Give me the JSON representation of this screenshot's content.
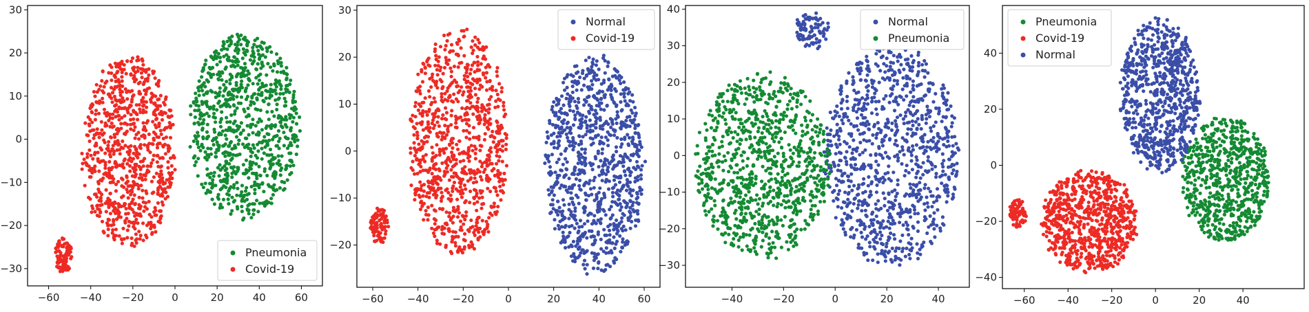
{
  "colors": {
    "Normal": "#3a4ea8",
    "Pneumonia": "#148a33",
    "Covid-19": "#ee2a24"
  },
  "chart_data": [
    {
      "type": "scatter",
      "title": "",
      "xlabel": "",
      "ylabel": "",
      "xlim": [
        -70,
        70
      ],
      "ylim": [
        -34,
        31
      ],
      "xticks": [
        -60,
        -40,
        -20,
        0,
        20,
        40,
        60
      ],
      "yticks": [
        -30,
        -20,
        -10,
        0,
        10,
        20,
        30
      ],
      "grid": false,
      "legend_position": "bottom-right",
      "legend": [
        "Pneumonia",
        "Covid-19"
      ],
      "series": [
        {
          "name": "Pneumonia",
          "clusters": [
            {
              "cx": 33,
              "cy": 3,
              "rx": 26,
              "ry": 21,
              "count": 900
            }
          ]
        },
        {
          "name": "Covid-19",
          "clusters": [
            {
              "cx": -22,
              "cy": -3,
              "rx": 22,
              "ry": 22,
              "count": 850
            },
            {
              "cx": -53,
              "cy": -27,
              "rx": 4,
              "ry": 4,
              "count": 90
            }
          ]
        }
      ]
    },
    {
      "type": "scatter",
      "title": "",
      "xlabel": "",
      "ylabel": "",
      "xlim": [
        -67,
        67
      ],
      "ylim": [
        -29,
        31
      ],
      "xticks": [
        -60,
        -40,
        -20,
        0,
        20,
        40,
        60
      ],
      "yticks": [
        -20,
        -10,
        0,
        10,
        20,
        30
      ],
      "grid": false,
      "legend_position": "top-right",
      "legend": [
        "Normal",
        "Covid-19"
      ],
      "series": [
        {
          "name": "Normal",
          "clusters": [
            {
              "cx": 38,
              "cy": -3,
              "rx": 22,
              "ry": 23,
              "count": 950
            }
          ]
        },
        {
          "name": "Covid-19",
          "clusters": [
            {
              "cx": -22,
              "cy": 2,
              "rx": 22,
              "ry": 24,
              "count": 900
            },
            {
              "cx": -57,
              "cy": -16,
              "rx": 4,
              "ry": 4,
              "count": 80
            }
          ]
        }
      ]
    },
    {
      "type": "scatter",
      "title": "",
      "xlabel": "",
      "ylabel": "",
      "xlim": [
        -58,
        52
      ],
      "ylim": [
        -36,
        41
      ],
      "xticks": [
        -40,
        -20,
        0,
        20,
        40
      ],
      "yticks": [
        -30,
        -20,
        -10,
        0,
        10,
        20,
        30,
        40
      ],
      "grid": false,
      "legend_position": "top-right",
      "legend": [
        "Normal",
        "Pneumonia"
      ],
      "series": [
        {
          "name": "Normal",
          "clusters": [
            {
              "cx": 22,
              "cy": 0,
              "rx": 26,
              "ry": 30,
              "count": 1000
            },
            {
              "cx": -9,
              "cy": 34,
              "rx": 7,
              "ry": 5,
              "count": 90
            }
          ]
        },
        {
          "name": "Pneumonia",
          "clusters": [
            {
              "cx": -28,
              "cy": -3,
              "rx": 26,
              "ry": 25,
              "count": 950
            }
          ]
        }
      ]
    },
    {
      "type": "scatter",
      "title": "",
      "xlabel": "",
      "ylabel": "",
      "xlim": [
        -70,
        68
      ],
      "ylim": [
        -44,
        57
      ],
      "xticks": [
        -60,
        -40,
        -20,
        0,
        20,
        40
      ],
      "yticks": [
        -40,
        -20,
        0,
        20,
        40
      ],
      "grid": false,
      "legend_position": "top-left",
      "legend": [
        "Pneumonia",
        "Covid-19",
        "Normal"
      ],
      "series": [
        {
          "name": "Pneumonia",
          "clusters": [
            {
              "cx": 32,
              "cy": -5,
              "rx": 20,
              "ry": 22,
              "count": 700
            }
          ]
        },
        {
          "name": "Covid-19",
          "clusters": [
            {
              "cx": -30,
              "cy": -20,
              "rx": 22,
              "ry": 18,
              "count": 800
            },
            {
              "cx": -63,
              "cy": -17,
              "rx": 4,
              "ry": 5,
              "count": 80
            }
          ]
        },
        {
          "name": "Normal",
          "clusters": [
            {
              "cx": 2,
              "cy": 25,
              "rx": 18,
              "ry": 27,
              "count": 800
            }
          ]
        }
      ]
    }
  ]
}
